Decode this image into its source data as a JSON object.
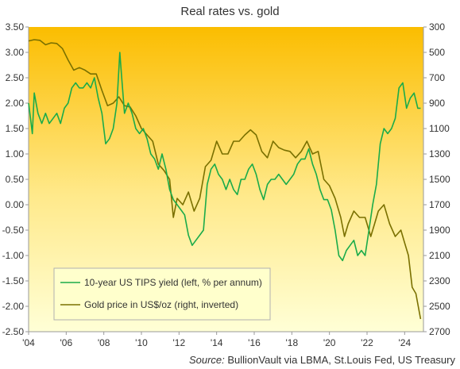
{
  "title": "Real rates vs. gold",
  "source": {
    "label": "Source:",
    "text": " BullionVault via LBMA, St.Louis Fed, US Treasury"
  },
  "colors": {
    "tips": "#1aab4a",
    "gold": "#7a7000",
    "background_top": "#fbbd00",
    "background_bottom": "#ffffd6"
  },
  "chart_data": {
    "type": "line",
    "title": "Real rates vs. gold",
    "x_axis": {
      "min": 2004,
      "max": 2025,
      "tick_labels": [
        "'04",
        "'06",
        "'08",
        "'10",
        "'12",
        "'14",
        "'16",
        "'18",
        "'20",
        "'22",
        "'24"
      ],
      "tick_values": [
        2004,
        2006,
        2008,
        2010,
        2012,
        2014,
        2016,
        2018,
        2020,
        2022,
        2024
      ]
    },
    "y_left": {
      "min": -2.5,
      "max": 3.5,
      "ticks": [
        3.5,
        3.0,
        2.5,
        2.0,
        1.5,
        1.0,
        0.5,
        0.0,
        -0.5,
        -1.0,
        -1.5,
        -2.0,
        -2.5
      ],
      "tick_labels": [
        "3.50",
        "3.00",
        "2.50",
        "2.00",
        "1.50",
        "1.00",
        "0.50",
        "0.00",
        "-0.50",
        "-1.00",
        "-1.50",
        "-2.00",
        "-2.50"
      ]
    },
    "y_right": {
      "min": 300,
      "max": 2700,
      "inverted": true,
      "ticks": [
        300,
        500,
        700,
        900,
        1100,
        1300,
        1500,
        1700,
        1900,
        2100,
        2300,
        2500,
        2700
      ],
      "tick_labels": [
        "300",
        "500",
        "700",
        "900",
        "1100",
        "1300",
        "1500",
        "1700",
        "1900",
        "2100",
        "2300",
        "2500",
        "2700"
      ]
    },
    "grid": false,
    "legend_position": "bottom-left",
    "series": [
      {
        "name": "10-year US TIPS yield (left, % per annum)",
        "axis": "left",
        "x": [
          2004.0,
          2004.1,
          2004.2,
          2004.3,
          2004.5,
          2004.7,
          2004.9,
          2005.1,
          2005.3,
          2005.5,
          2005.7,
          2005.9,
          2006.1,
          2006.3,
          2006.5,
          2006.7,
          2006.9,
          2007.1,
          2007.3,
          2007.5,
          2007.7,
          2007.9,
          2008.1,
          2008.3,
          2008.5,
          2008.7,
          2008.85,
          2008.95,
          2009.1,
          2009.3,
          2009.5,
          2009.7,
          2009.9,
          2010.1,
          2010.3,
          2010.5,
          2010.7,
          2010.9,
          2011.1,
          2011.3,
          2011.5,
          2011.7,
          2011.9,
          2012.1,
          2012.3,
          2012.5,
          2012.7,
          2012.9,
          2013.1,
          2013.3,
          2013.5,
          2013.7,
          2013.9,
          2014.1,
          2014.3,
          2014.5,
          2014.7,
          2014.9,
          2015.1,
          2015.3,
          2015.5,
          2015.7,
          2015.9,
          2016.1,
          2016.3,
          2016.5,
          2016.7,
          2016.9,
          2017.1,
          2017.3,
          2017.5,
          2017.7,
          2017.9,
          2018.1,
          2018.3,
          2018.5,
          2018.7,
          2018.9,
          2019.1,
          2019.3,
          2019.5,
          2019.7,
          2019.9,
          2020.1,
          2020.3,
          2020.5,
          2020.7,
          2020.9,
          2021.1,
          2021.3,
          2021.5,
          2021.7,
          2021.9,
          2022.1,
          2022.3,
          2022.5,
          2022.7,
          2022.9,
          2023.1,
          2023.3,
          2023.5,
          2023.7,
          2023.9,
          2024.1,
          2024.3,
          2024.5,
          2024.7,
          2024.85
        ],
        "y": [
          2.0,
          1.7,
          1.4,
          2.2,
          1.8,
          1.6,
          1.8,
          1.6,
          1.7,
          1.8,
          1.6,
          1.9,
          2.0,
          2.3,
          2.4,
          2.3,
          2.3,
          2.4,
          2.3,
          2.5,
          2.1,
          1.8,
          1.2,
          1.3,
          1.5,
          2.0,
          3.0,
          2.5,
          1.8,
          2.0,
          1.8,
          1.5,
          1.4,
          1.5,
          1.3,
          1.0,
          0.9,
          0.7,
          1.0,
          0.7,
          0.3,
          0.1,
          0.0,
          -0.1,
          -0.2,
          -0.6,
          -0.8,
          -0.7,
          -0.6,
          -0.5,
          0.4,
          0.7,
          0.8,
          0.6,
          0.5,
          0.3,
          0.5,
          0.3,
          0.2,
          0.5,
          0.5,
          0.7,
          0.8,
          0.6,
          0.3,
          0.1,
          0.4,
          0.5,
          0.5,
          0.6,
          0.5,
          0.4,
          0.5,
          0.6,
          0.8,
          0.9,
          0.9,
          1.1,
          0.8,
          0.6,
          0.3,
          0.1,
          0.1,
          -0.1,
          -0.5,
          -1.0,
          -1.1,
          -0.9,
          -0.8,
          -0.7,
          -1.0,
          -0.9,
          -1.0,
          -0.5,
          0.0,
          0.4,
          1.2,
          1.5,
          1.4,
          1.5,
          1.7,
          2.3,
          2.4,
          1.9,
          2.1,
          2.2,
          1.9,
          1.9
        ]
      },
      {
        "name": "Gold price in US$/oz (right, inverted)",
        "axis": "right",
        "x": [
          2004.0,
          2004.3,
          2004.6,
          2004.9,
          2005.2,
          2005.5,
          2005.8,
          2006.1,
          2006.4,
          2006.7,
          2007.0,
          2007.3,
          2007.6,
          2007.9,
          2008.2,
          2008.5,
          2008.8,
          2009.1,
          2009.4,
          2009.7,
          2010.0,
          2010.3,
          2010.6,
          2010.9,
          2011.2,
          2011.5,
          2011.7,
          2011.9,
          2012.2,
          2012.5,
          2012.8,
          2013.1,
          2013.4,
          2013.7,
          2014.0,
          2014.3,
          2014.6,
          2014.9,
          2015.2,
          2015.5,
          2015.8,
          2016.1,
          2016.4,
          2016.7,
          2017.0,
          2017.3,
          2017.6,
          2017.9,
          2018.2,
          2018.5,
          2018.8,
          2019.1,
          2019.4,
          2019.7,
          2020.0,
          2020.3,
          2020.6,
          2020.8,
          2021.0,
          2021.3,
          2021.6,
          2021.9,
          2022.2,
          2022.4,
          2022.6,
          2022.9,
          2023.2,
          2023.5,
          2023.8,
          2024.0,
          2024.2,
          2024.4,
          2024.6,
          2024.85
        ],
        "y": [
          410,
          400,
          405,
          440,
          425,
          430,
          470,
          560,
          640,
          620,
          640,
          670,
          670,
          800,
          920,
          900,
          850,
          920,
          930,
          1000,
          1100,
          1150,
          1200,
          1380,
          1430,
          1500,
          1800,
          1650,
          1700,
          1600,
          1750,
          1650,
          1400,
          1350,
          1200,
          1300,
          1300,
          1200,
          1200,
          1150,
          1110,
          1150,
          1280,
          1330,
          1200,
          1250,
          1270,
          1280,
          1330,
          1280,
          1200,
          1300,
          1280,
          1500,
          1550,
          1650,
          1800,
          1950,
          1850,
          1750,
          1800,
          1800,
          1950,
          1850,
          1750,
          1700,
          1850,
          1950,
          1900,
          2000,
          2100,
          2350,
          2400,
          2600
        ]
      }
    ]
  },
  "legend": {
    "tips_label": "10-year US TIPS yield (left, % per annum)",
    "gold_label": "Gold price in US$/oz (right, inverted)"
  }
}
